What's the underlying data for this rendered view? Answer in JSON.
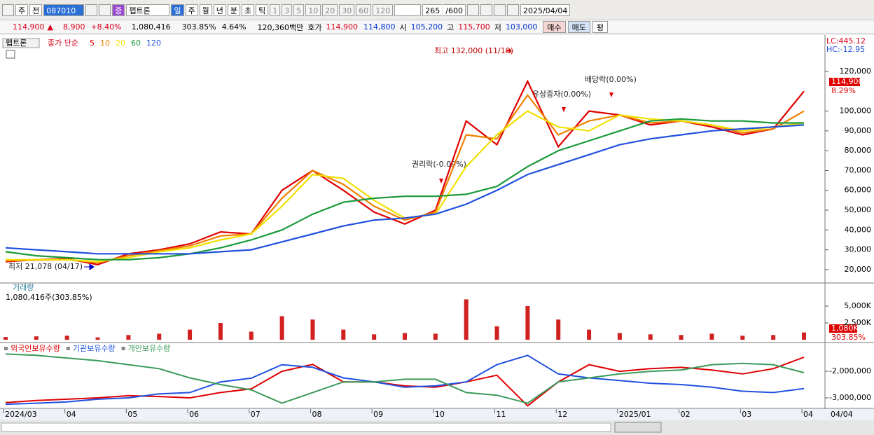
{
  "toolbar": {
    "market": "주",
    "prev": "전",
    "code": "087010",
    "badge": "증",
    "name": "펩트론",
    "periods": [
      "일",
      "주",
      "월",
      "년",
      "분",
      "초",
      "틱"
    ],
    "intervals": [
      "1",
      "3",
      "5",
      "10",
      "20",
      "30",
      "60",
      "120"
    ],
    "count": "265",
    "max": "/600",
    "date": "2025/04/04"
  },
  "quote": {
    "price": "114,900",
    "arrow": "▲",
    "change": "8,900",
    "rate": "+8.40%",
    "volume": "1,080,416",
    "vol_ratio": "303.85%",
    "turnover": "4.64%",
    "amount": "120,360백만",
    "bid_label": "호가",
    "bid": "114,900",
    "ask": "114,800",
    "open_label": "시",
    "open": "105,200",
    "high_label": "고",
    "high": "115,700",
    "low_label": "저",
    "low": "103,000",
    "buy": "매수",
    "sell": "매도",
    "eval": "평"
  },
  "chart_data": [
    {
      "type": "line",
      "legend_title": "종가 단순",
      "lc": "LC:445.12",
      "hc": "HC:-12.95",
      "tag_rate": "8.29%",
      "annotations": [
        "최고 132,000 (11/18)",
        "최저 21,078 (04/17)",
        "권리락(-0.09%)",
        "유상증자(0.00%)",
        "배당락(0.00%)"
      ],
      "categories": [
        "2024/03",
        null,
        "04",
        null,
        "05",
        null,
        "06",
        null,
        "07",
        null,
        "08",
        null,
        "09",
        null,
        "10",
        null,
        "11",
        null,
        "12",
        null,
        "2025/01",
        null,
        "02",
        null,
        "03",
        null,
        "04"
      ],
      "series": [
        {
          "name": "5",
          "color": "#e00000",
          "values": [
            24000,
            25000,
            25500,
            22500,
            28000,
            30000,
            33000,
            39000,
            38000,
            60000,
            70000,
            60000,
            49000,
            43000,
            50000,
            95000,
            83000,
            115000,
            82000,
            100000,
            98000,
            93000,
            95000,
            92000,
            88000,
            91000,
            110000
          ]
        },
        {
          "name": "10",
          "color": "#f08000",
          "values": [
            24500,
            24800,
            25000,
            23500,
            27000,
            29500,
            32000,
            37000,
            38000,
            56000,
            70000,
            63000,
            52000,
            45000,
            49000,
            88000,
            86000,
            108000,
            88000,
            95000,
            98000,
            94000,
            95000,
            93000,
            89000,
            91000,
            100000
          ]
        },
        {
          "name": "20",
          "color": "#f0e000",
          "values": [
            25000,
            25000,
            25000,
            24000,
            26000,
            29000,
            31000,
            35000,
            38000,
            52000,
            68000,
            66000,
            55000,
            46000,
            48000,
            72000,
            88000,
            100000,
            92000,
            90000,
            98000,
            96000,
            95000,
            93000,
            90000,
            92000,
            94000
          ]
        },
        {
          "name": "60",
          "color": "#1a9a3a",
          "values": [
            29000,
            27000,
            26000,
            25000,
            25000,
            26000,
            28000,
            31000,
            35000,
            40000,
            48000,
            54000,
            56000,
            57000,
            57000,
            58000,
            62000,
            72000,
            80000,
            85000,
            90000,
            95000,
            96000,
            95000,
            95000,
            94000,
            94000
          ]
        },
        {
          "name": "120",
          "color": "#2050e0",
          "values": [
            31000,
            30000,
            29000,
            28000,
            28000,
            28000,
            28000,
            29000,
            30000,
            34000,
            38000,
            42000,
            45000,
            46000,
            48000,
            53000,
            60000,
            68000,
            73000,
            78000,
            83000,
            86000,
            88000,
            90000,
            91000,
            92000,
            93000
          ]
        }
      ],
      "ylim": [
        13600,
        136600
      ],
      "yticks": [
        {
          "value": 20000,
          "label": "20,000"
        },
        {
          "value": 30000,
          "label": "30,000"
        },
        {
          "value": 40000,
          "label": "40,000"
        },
        {
          "value": 50000,
          "label": "50,000"
        },
        {
          "value": 60000,
          "label": "60,000"
        },
        {
          "value": 70000,
          "label": "70,000"
        },
        {
          "value": 80000,
          "label": "80,000"
        },
        {
          "value": 90000,
          "label": "90,000"
        },
        {
          "value": 100000,
          "label": "100,000"
        },
        {
          "value": 120000,
          "label": "120,000"
        }
      ]
    },
    {
      "type": "bar",
      "title": "거래량",
      "subtitle": "1,080,416주(303.85%)",
      "tag_value": "1,080K",
      "tag_rate": "303.85%",
      "color": "#d02020",
      "categories": [
        "2024/03",
        null,
        "04",
        null,
        "05",
        null,
        "06",
        null,
        "07",
        null,
        "08",
        null,
        "09",
        null,
        "10",
        null,
        "11",
        null,
        "12",
        null,
        "2025/01",
        null,
        "02",
        null,
        "03",
        null,
        "04"
      ],
      "values": [
        400000,
        500000,
        600000,
        350000,
        700000,
        900000,
        1500000,
        2500000,
        1200000,
        3500000,
        3000000,
        1500000,
        800000,
        1000000,
        900000,
        6000000,
        2000000,
        5000000,
        3000000,
        1500000,
        1000000,
        800000,
        700000,
        900000,
        600000,
        700000,
        1080416
      ],
      "ylim": [
        0,
        8330000
      ],
      "yticks": [
        {
          "value": 2500000,
          "label": "2,500K"
        },
        {
          "value": 5000000,
          "label": "5,000K"
        }
      ]
    },
    {
      "type": "line",
      "end_label": "04/04",
      "categories": [
        "2024/03",
        null,
        "04",
        null,
        "05",
        null,
        "06",
        null,
        "07",
        null,
        "08",
        null,
        "09",
        null,
        "10",
        null,
        "11",
        null,
        "12",
        null,
        "2025/01",
        null,
        "02",
        null,
        "03",
        null,
        "04"
      ],
      "series": [
        {
          "name": "외국인보유수량",
          "color": "#e00000",
          "values": [
            -3180000,
            -3100000,
            -3050000,
            -3000000,
            -2920000,
            -2950000,
            -3000000,
            -2800000,
            -2660000,
            -2000000,
            -1740000,
            -2400000,
            -2400000,
            -2550000,
            -2600000,
            -2400000,
            -2150000,
            -3300000,
            -2400000,
            -1750000,
            -2000000,
            -1900000,
            -1850000,
            -1950000,
            -2100000,
            -1900000,
            -1470000
          ]
        },
        {
          "name": "기관보유수량",
          "color": "#2050e0",
          "values": [
            -3240000,
            -3200000,
            -3150000,
            -3050000,
            -3000000,
            -2850000,
            -2800000,
            -2400000,
            -2260000,
            -1750000,
            -1850000,
            -2250000,
            -2400000,
            -2600000,
            -2550000,
            -2400000,
            -1750000,
            -1400000,
            -2100000,
            -2250000,
            -2350000,
            -2450000,
            -2500000,
            -2600000,
            -2750000,
            -2800000,
            -2650000
          ]
        },
        {
          "name": "개인보유수량",
          "color": "#3a9a5a",
          "values": [
            -1350000,
            -1400000,
            -1500000,
            -1600000,
            -1750000,
            -1900000,
            -2250000,
            -2500000,
            -2700000,
            -3200000,
            -2800000,
            -2400000,
            -2400000,
            -2300000,
            -2300000,
            -2800000,
            -2900000,
            -3200000,
            -2400000,
            -2250000,
            -2100000,
            -2000000,
            -1950000,
            -1750000,
            -1700000,
            -1750000,
            -2050000
          ]
        }
      ],
      "ylim": [
        -3370000,
        -970000
      ],
      "yticks": [
        {
          "value": -3000000,
          "label": "-3,000,000"
        },
        {
          "value": -2000000,
          "label": "-2,000,000"
        }
      ]
    }
  ]
}
